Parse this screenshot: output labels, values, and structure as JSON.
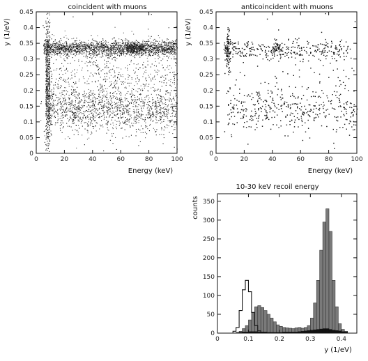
{
  "chart_data": [
    {
      "type": "scatter",
      "title": "coincident with muons",
      "xlabel": "Energy (keV)",
      "ylabel": "y (1/eV)",
      "xlim": [
        0,
        100
      ],
      "ylim": [
        0,
        0.45
      ],
      "xticks": [
        "0",
        "20",
        "40",
        "60",
        "80",
        "100"
      ],
      "yticks": [
        "0",
        "0.05",
        "0.1",
        "0.15",
        "0.2",
        "0.25",
        "0.3",
        "0.35",
        "0.4",
        "0.45"
      ],
      "point_clusters": [
        {
          "x_range": [
            5,
            100
          ],
          "y_center": 0.335,
          "y_spread": 0.012,
          "n": 1900
        },
        {
          "x_range": [
            64,
            76
          ],
          "y_center": 0.335,
          "y_spread": 0.008,
          "n": 350
        },
        {
          "x_range": [
            8,
            100
          ],
          "y_center": 0.14,
          "y_spread": 0.035,
          "n": 1300
        },
        {
          "x_range": [
            6,
            100
          ],
          "y_center": 0.25,
          "y_spread": 0.05,
          "n": 500
        },
        {
          "x_range": [
            6.5,
            9.5
          ],
          "y_center": 0.22,
          "y_spread": 0.11,
          "n": 600
        },
        {
          "x_range": [
            3,
            100
          ],
          "y_center": 0.2,
          "y_spread": 0.2,
          "n": 200
        }
      ]
    },
    {
      "type": "scatter",
      "title": "anticoincident with muons",
      "xlabel": "Energy (keV)",
      "ylabel": "y (1/eV)",
      "xlim": [
        0,
        100
      ],
      "ylim": [
        0,
        0.45
      ],
      "xticks": [
        "0",
        "20",
        "40",
        "60",
        "80",
        "100"
      ],
      "yticks": [
        "0",
        "0.05",
        "0.1",
        "0.15",
        "0.2",
        "0.25",
        "0.3",
        "0.35",
        "0.4",
        "0.45"
      ],
      "point_clusters": [
        {
          "x_range": [
            5,
            95
          ],
          "y_center": 0.33,
          "y_spread": 0.015,
          "n": 300
        },
        {
          "x_range": [
            7,
            10
          ],
          "y_center": 0.33,
          "y_spread": 0.04,
          "n": 90
        },
        {
          "x_range": [
            40,
            46
          ],
          "y_center": 0.335,
          "y_spread": 0.01,
          "n": 40
        },
        {
          "x_range": [
            8,
            100
          ],
          "y_center": 0.14,
          "y_spread": 0.035,
          "n": 360
        },
        {
          "x_range": [
            5,
            100
          ],
          "y_center": 0.22,
          "y_spread": 0.1,
          "n": 130
        }
      ]
    },
    {
      "type": "histogram",
      "title": "10-30 keV recoil energy",
      "xlabel": "y (1/eV)",
      "ylabel": "counts",
      "xlim": [
        0,
        0.45
      ],
      "ylim": [
        0,
        370
      ],
      "xticks": [
        "0",
        "0.1",
        "0.2",
        "0.3",
        "0.4"
      ],
      "yticks": [
        "0",
        "50",
        "100",
        "150",
        "200",
        "250",
        "300",
        "350"
      ],
      "bin_width": 0.01,
      "bin_start": 0.0,
      "series": [
        {
          "style": "gray-filled",
          "values": [
            0,
            0,
            0,
            0,
            0,
            0,
            2,
            5,
            12,
            20,
            35,
            55,
            70,
            73,
            68,
            60,
            50,
            40,
            30,
            22,
            18,
            15,
            14,
            13,
            12,
            14,
            15,
            13,
            15,
            20,
            40,
            80,
            140,
            220,
            295,
            330,
            270,
            140,
            70,
            25,
            10,
            5,
            0,
            0,
            0
          ]
        },
        {
          "style": "outline",
          "values": [
            0,
            0,
            0,
            0,
            0,
            5,
            15,
            60,
            115,
            140,
            110,
            55,
            20,
            6,
            2,
            1,
            0,
            0,
            0,
            0,
            0,
            0,
            0,
            0,
            0,
            0,
            0,
            0,
            0,
            0,
            0,
            0,
            0,
            0,
            0,
            0,
            0,
            0,
            0,
            0,
            0,
            0,
            0,
            0,
            0
          ]
        },
        {
          "style": "black-filled",
          "values": [
            0,
            0,
            0,
            0,
            0,
            0,
            1,
            2,
            3,
            3,
            4,
            4,
            4,
            3,
            3,
            3,
            2,
            2,
            2,
            2,
            2,
            3,
            3,
            3,
            3,
            3,
            4,
            5,
            6,
            7,
            8,
            9,
            10,
            11,
            12,
            12,
            10,
            8,
            7,
            6,
            4,
            3,
            0,
            0,
            0
          ]
        }
      ]
    }
  ]
}
